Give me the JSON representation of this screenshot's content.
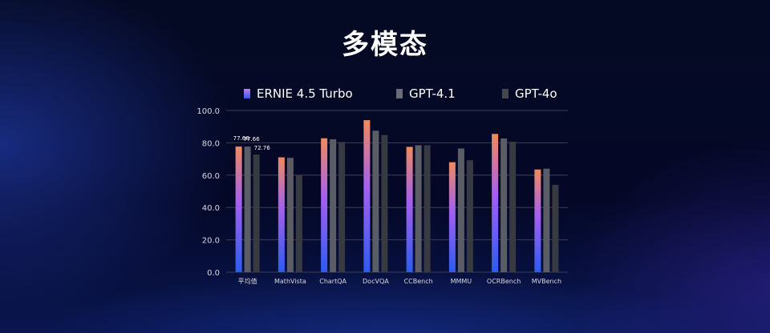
{
  "title": "多模态",
  "chart_data": {
    "type": "bar",
    "categories": [
      "平均值",
      "MathVista",
      "ChartQA",
      "DocVQA",
      "CCBench",
      "MMMU",
      "OCRBench",
      "MVBench"
    ],
    "series": [
      {
        "name": "ERNIE 4.5 Turbo",
        "values": [
          77.68,
          71.0,
          82.8,
          94.0,
          77.5,
          68.0,
          85.5,
          63.5
        ]
      },
      {
        "name": "GPT-4.1",
        "values": [
          77.66,
          70.7,
          82.2,
          87.5,
          78.5,
          76.5,
          82.7,
          64.0
        ]
      },
      {
        "name": "GPT-4o",
        "values": [
          72.76,
          60.0,
          80.5,
          84.8,
          78.5,
          69.2,
          80.7,
          54.0
        ]
      }
    ],
    "ylim": [
      0,
      100
    ],
    "yticks": [
      0,
      20,
      40,
      60,
      80,
      100
    ],
    "ytick_labels": [
      "0.0",
      "20.0",
      "40.0",
      "60.0",
      "80.0",
      "100.0"
    ],
    "data_labels": {
      "category_index": 0,
      "labels": [
        "77.68",
        "77.66",
        "72.76"
      ]
    },
    "grid": true,
    "legend_position": "top",
    "colors": {
      "ernie_top": "#f08a5d",
      "ernie_mid": "#a35ff0",
      "ernie_bottom": "#2c5cf0",
      "gpt41": "#5a5c66",
      "gpt4o": "#383a42",
      "grid": "#3a3e52",
      "axis_text": "#d8d8e0"
    }
  }
}
